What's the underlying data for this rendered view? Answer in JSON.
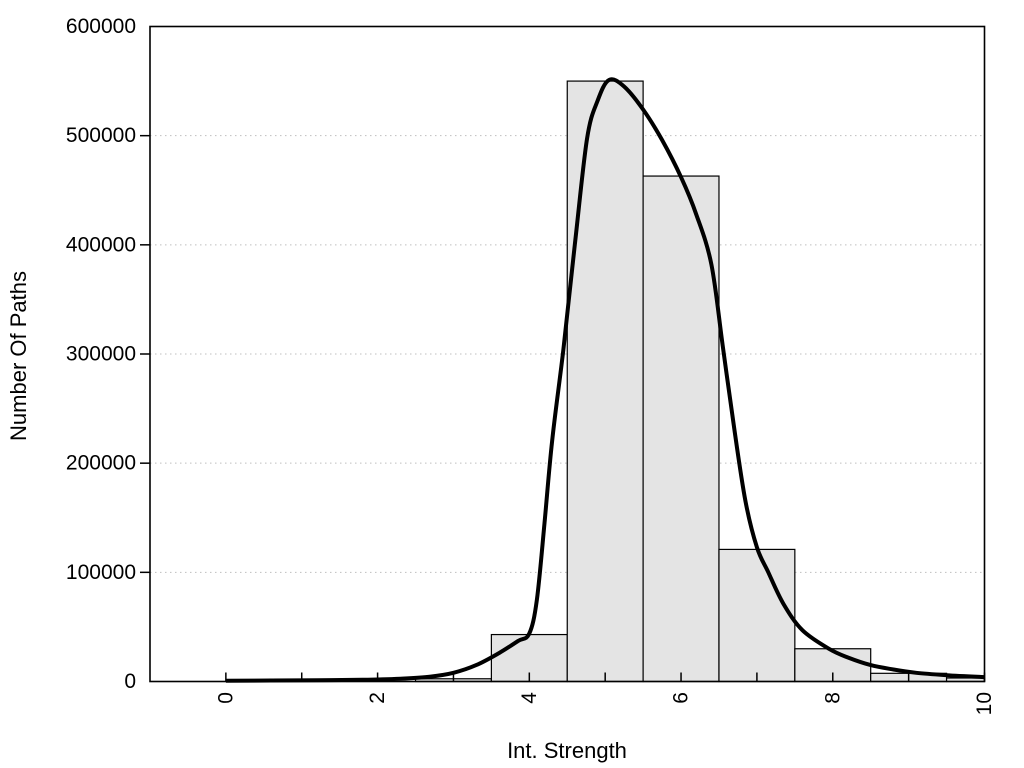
{
  "chart_data": {
    "type": "bar",
    "subtype": "histogram-with-density-curve",
    "title": "",
    "xlabel": "Int. Strength",
    "ylabel": "Number Of Paths",
    "xlim": [
      -1,
      10
    ],
    "ylim": [
      0,
      600000
    ],
    "x_tick_step": 1,
    "x_labeled_ticks": [
      0,
      2,
      4,
      6,
      8,
      10
    ],
    "y_ticks": [
      0,
      100000,
      200000,
      300000,
      400000,
      500000,
      600000
    ],
    "grid": "horizontal-dotted-at-labeled-y-ticks",
    "legend": "none",
    "bins": [
      {
        "x0": 2.5,
        "x1": 3.5,
        "count": 2500
      },
      {
        "x0": 3.5,
        "x1": 4.5,
        "count": 43000
      },
      {
        "x0": 4.5,
        "x1": 5.5,
        "count": 550000
      },
      {
        "x0": 5.5,
        "x1": 6.5,
        "count": 463000
      },
      {
        "x0": 6.5,
        "x1": 7.5,
        "count": 121000
      },
      {
        "x0": 7.5,
        "x1": 8.5,
        "count": 30000
      },
      {
        "x0": 8.5,
        "x1": 9.5,
        "count": 7500
      },
      {
        "x0": 9.5,
        "x1": 10.0,
        "count": 3200
      }
    ],
    "curve_points": [
      [
        0.0,
        700
      ],
      [
        0.6,
        900
      ],
      [
        1.2,
        1100
      ],
      [
        1.8,
        1600
      ],
      [
        2.3,
        2600
      ],
      [
        2.7,
        4500
      ],
      [
        3.0,
        8000
      ],
      [
        3.3,
        15000
      ],
      [
        3.6,
        26000
      ],
      [
        3.85,
        37000
      ],
      [
        4.0,
        44000
      ],
      [
        4.1,
        75000
      ],
      [
        4.2,
        145000
      ],
      [
        4.3,
        220000
      ],
      [
        4.45,
        305000
      ],
      [
        4.6,
        400000
      ],
      [
        4.76,
        497000
      ],
      [
        4.9,
        532000
      ],
      [
        5.05,
        551000
      ],
      [
        5.25,
        545000
      ],
      [
        5.5,
        524000
      ],
      [
        5.75,
        496000
      ],
      [
        6.0,
        462000
      ],
      [
        6.2,
        428000
      ],
      [
        6.4,
        382000
      ],
      [
        6.55,
        307000
      ],
      [
        6.7,
        232000
      ],
      [
        6.85,
        165000
      ],
      [
        7.0,
        123000
      ],
      [
        7.15,
        100000
      ],
      [
        7.35,
        71000
      ],
      [
        7.6,
        47000
      ],
      [
        7.95,
        30000
      ],
      [
        8.2,
        22000
      ],
      [
        8.5,
        15000
      ],
      [
        8.8,
        11000
      ],
      [
        9.1,
        8000
      ],
      [
        9.5,
        5800
      ],
      [
        10.0,
        4000
      ]
    ],
    "colors": {
      "background": "#ffffff",
      "bar_fill": "#e4e4e4",
      "bar_stroke": "#000000",
      "curve": "#000000",
      "grid": "#bfbfbf",
      "axis": "#000000",
      "text": "#000000"
    }
  }
}
